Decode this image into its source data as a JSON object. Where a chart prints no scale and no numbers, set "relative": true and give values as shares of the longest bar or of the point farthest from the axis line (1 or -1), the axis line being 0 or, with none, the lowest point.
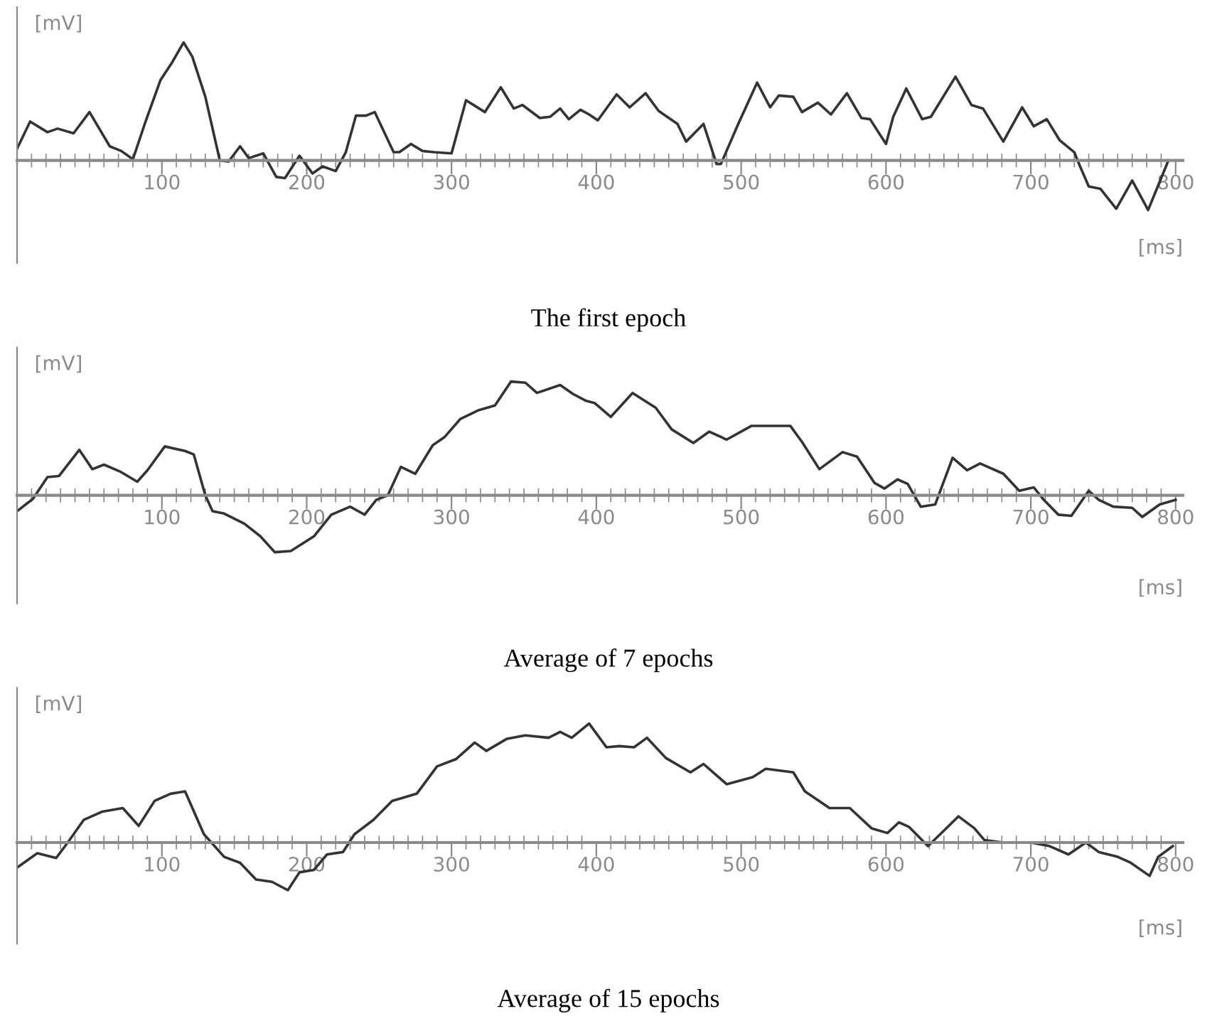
{
  "chart_data": [
    {
      "type": "line",
      "title": "The first epoch",
      "xlabel": "[ms]",
      "ylabel": "[mV]",
      "relative": true,
      "xlim": [
        0,
        805
      ],
      "xticks": [
        100,
        200,
        300,
        400,
        500,
        600,
        700,
        800
      ],
      "x": [
        0,
        9,
        21,
        28,
        39,
        50,
        64,
        72,
        80,
        89,
        99,
        107,
        115,
        121,
        130,
        140,
        146,
        154,
        160,
        170,
        179,
        185,
        195,
        204,
        211,
        220,
        227,
        234,
        241,
        247,
        260,
        264,
        272,
        280,
        288,
        300,
        310,
        323,
        334,
        343,
        349,
        361,
        368,
        375,
        381,
        389,
        395,
        401,
        414,
        423,
        434,
        443,
        456,
        462,
        474,
        483,
        486,
        498,
        511,
        520,
        526,
        536,
        542,
        553,
        562,
        573,
        583,
        589,
        600,
        605,
        614,
        625,
        631,
        648,
        659,
        667,
        681,
        694,
        702,
        711,
        720,
        730,
        734,
        740,
        748,
        759,
        770,
        781,
        791,
        795
      ],
      "series": [
        {
          "color": "#333333",
          "values": [
            0.1,
            0.33,
            0.24,
            0.27,
            0.23,
            0.41,
            0.12,
            0.08,
            0.01,
            0.34,
            0.68,
            0.83,
            1.0,
            0.88,
            0.54,
            0.0,
            -0.01,
            0.12,
            0.02,
            0.06,
            -0.14,
            -0.15,
            0.04,
            -0.11,
            -0.05,
            -0.09,
            0.07,
            0.38,
            0.38,
            0.41,
            0.07,
            0.07,
            0.14,
            0.08,
            0.07,
            0.06,
            0.51,
            0.41,
            0.62,
            0.44,
            0.47,
            0.36,
            0.37,
            0.44,
            0.35,
            0.43,
            0.39,
            0.34,
            0.56,
            0.45,
            0.57,
            0.42,
            0.31,
            0.16,
            0.31,
            -0.03,
            -0.03,
            0.31,
            0.66,
            0.45,
            0.55,
            0.54,
            0.41,
            0.49,
            0.39,
            0.57,
            0.36,
            0.35,
            0.14,
            0.37,
            0.61,
            0.35,
            0.37,
            0.71,
            0.47,
            0.44,
            0.16,
            0.45,
            0.29,
            0.35,
            0.17,
            0.07,
            -0.05,
            -0.22,
            -0.24,
            -0.41,
            -0.17,
            -0.42,
            -0.12,
            0.0
          ]
        }
      ]
    },
    {
      "type": "line",
      "title": "Average of 7 epochs",
      "xlabel": "[ms]",
      "ylabel": "[mV]",
      "relative": true,
      "xlim": [
        0,
        805
      ],
      "xticks": [
        100,
        200,
        300,
        400,
        500,
        600,
        700,
        800
      ],
      "x": [
        0,
        11,
        21,
        29,
        43,
        52,
        60,
        71,
        83,
        90,
        102,
        116,
        122,
        130,
        135,
        143,
        157,
        168,
        178,
        189,
        205,
        217,
        230,
        240,
        248,
        256,
        265,
        275,
        287,
        295,
        306,
        319,
        330,
        341,
        351,
        359,
        375,
        384,
        393,
        399,
        410,
        425,
        441,
        452,
        467,
        478,
        490,
        507,
        534,
        542,
        554,
        570,
        580,
        592,
        599,
        608,
        615,
        624,
        634,
        646,
        656,
        665,
        681,
        692,
        702,
        709,
        719,
        728,
        740,
        747,
        757,
        770,
        777,
        789,
        800
      ],
      "series": [
        {
          "color": "#333333",
          "values": [
            -0.14,
            -0.03,
            0.16,
            0.17,
            0.4,
            0.23,
            0.27,
            0.21,
            0.12,
            0.22,
            0.43,
            0.39,
            0.36,
            0.0,
            -0.14,
            -0.16,
            -0.25,
            -0.36,
            -0.5,
            -0.49,
            -0.36,
            -0.17,
            -0.1,
            -0.17,
            -0.04,
            0.0,
            0.25,
            0.19,
            0.44,
            0.51,
            0.67,
            0.75,
            0.79,
            1.0,
            0.99,
            0.9,
            0.97,
            0.89,
            0.83,
            0.81,
            0.69,
            0.9,
            0.77,
            0.58,
            0.46,
            0.56,
            0.49,
            0.61,
            0.61,
            0.47,
            0.23,
            0.38,
            0.34,
            0.11,
            0.06,
            0.14,
            0.1,
            -0.1,
            -0.08,
            0.33,
            0.22,
            0.28,
            0.19,
            0.04,
            0.07,
            -0.04,
            -0.17,
            -0.18,
            0.04,
            -0.04,
            -0.1,
            -0.11,
            -0.19,
            -0.08,
            -0.04
          ]
        }
      ]
    },
    {
      "type": "line",
      "title": "Average of 15 epochs",
      "xlabel": "[ms]",
      "ylabel": "[mV]",
      "relative": true,
      "xlim": [
        0,
        805
      ],
      "xticks": [
        100,
        200,
        300,
        400,
        500,
        600,
        700,
        800
      ],
      "x": [
        0,
        14,
        27,
        35,
        46,
        59,
        73,
        84,
        95,
        106,
        116,
        129,
        143,
        154,
        165,
        176,
        187,
        195,
        205,
        214,
        225,
        233,
        246,
        259,
        276,
        290,
        303,
        316,
        324,
        338,
        351,
        367,
        375,
        383,
        395,
        407,
        416,
        426,
        435,
        448,
        465,
        474,
        490,
        508,
        517,
        536,
        544,
        561,
        575,
        590,
        601,
        609,
        616,
        629,
        640,
        650,
        661,
        668,
        681,
        700,
        713,
        726,
        738,
        747,
        760,
        769,
        782,
        788,
        798
      ],
      "series": [
        {
          "color": "#333333",
          "values": [
            -0.21,
            -0.09,
            -0.13,
            0.0,
            0.19,
            0.26,
            0.29,
            0.14,
            0.35,
            0.41,
            0.43,
            0.07,
            -0.12,
            -0.17,
            -0.31,
            -0.33,
            -0.4,
            -0.25,
            -0.23,
            -0.1,
            -0.08,
            0.07,
            0.19,
            0.35,
            0.41,
            0.64,
            0.7,
            0.84,
            0.77,
            0.87,
            0.9,
            0.88,
            0.93,
            0.88,
            1.0,
            0.8,
            0.81,
            0.8,
            0.88,
            0.71,
            0.59,
            0.66,
            0.49,
            0.55,
            0.62,
            0.59,
            0.43,
            0.29,
            0.29,
            0.12,
            0.08,
            0.17,
            0.13,
            -0.03,
            0.1,
            0.22,
            0.12,
            0.02,
            0.0,
            0.0,
            -0.03,
            -0.1,
            0.0,
            -0.08,
            -0.12,
            -0.17,
            -0.28,
            -0.12,
            -0.03
          ]
        }
      ]
    }
  ]
}
